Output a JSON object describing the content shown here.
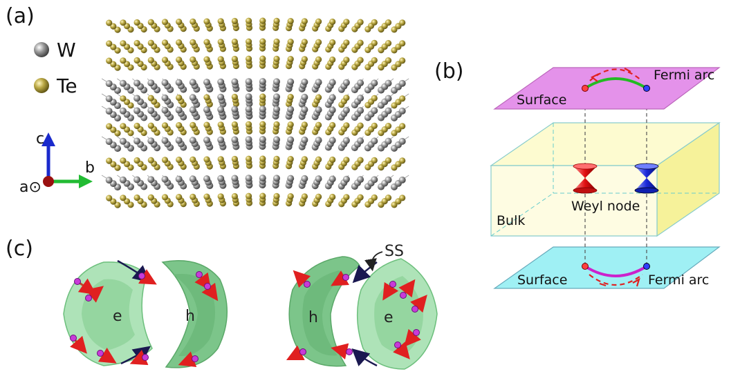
{
  "panels": {
    "a": {
      "label": "(a)",
      "legend": [
        {
          "symbol": "W",
          "color": "#8a8a8a"
        },
        {
          "symbol": "Te",
          "color": "#b7a64a"
        }
      ],
      "axes": {
        "c": "c",
        "b": "b",
        "a": "a⊙"
      }
    },
    "b": {
      "label": "(b)",
      "top_surface": "Surface",
      "top_arc": "Fermi arc",
      "bulk": "Bulk",
      "node": "Weyl node",
      "bottom_surface": "Surface",
      "bottom_arc": "Fermi arc"
    },
    "c": {
      "label": "(c)",
      "ss": "SS",
      "left_e": "e",
      "left_h": "h",
      "right_h": "h",
      "right_e": "e"
    }
  },
  "colors": {
    "w_atom": "#8a8a8a",
    "te_atom": "#b7a64a",
    "top_surface": "#e08be6",
    "bottom_surface": "#8ee9f0",
    "bulk": "#fdfbd0",
    "weyl_red": "#e02020",
    "weyl_blue": "#2030d0",
    "pocket_green": "#8fd29a",
    "arc_green": "#22bb22",
    "arc_magenta": "#cc22cc"
  }
}
